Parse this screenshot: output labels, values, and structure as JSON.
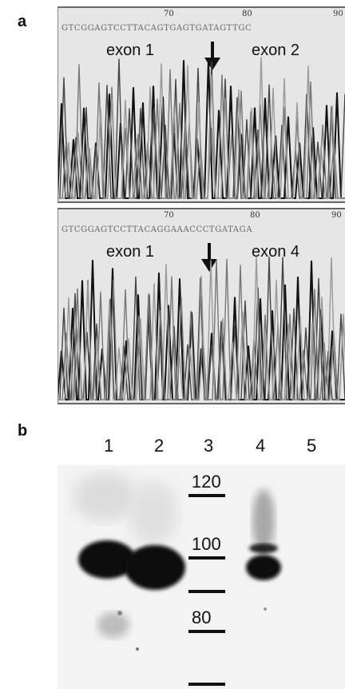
{
  "panel_a": {
    "letter": "a",
    "trace_top": {
      "sequence": "GTCGGAGTCCTTACAGTGAGTGATAGTTGC",
      "positions": [
        "70",
        "80",
        "90"
      ],
      "left_exon": "exon 1",
      "right_exon": "exon 2",
      "arrow_icon": "down-arrow-icon"
    },
    "trace_bottom": {
      "sequence": "GTCGGAGTCCTTACAGGAAACCCTGATAGA",
      "positions": [
        "70",
        "80",
        "90"
      ],
      "left_exon": "exon 1",
      "right_exon": "exon 4",
      "arrow_icon": "down-arrow-icon"
    }
  },
  "panel_b": {
    "letter": "b",
    "lanes": [
      "1",
      "2",
      "3",
      "4",
      "5"
    ],
    "marker_labels": [
      "120",
      "100",
      "80"
    ]
  }
}
